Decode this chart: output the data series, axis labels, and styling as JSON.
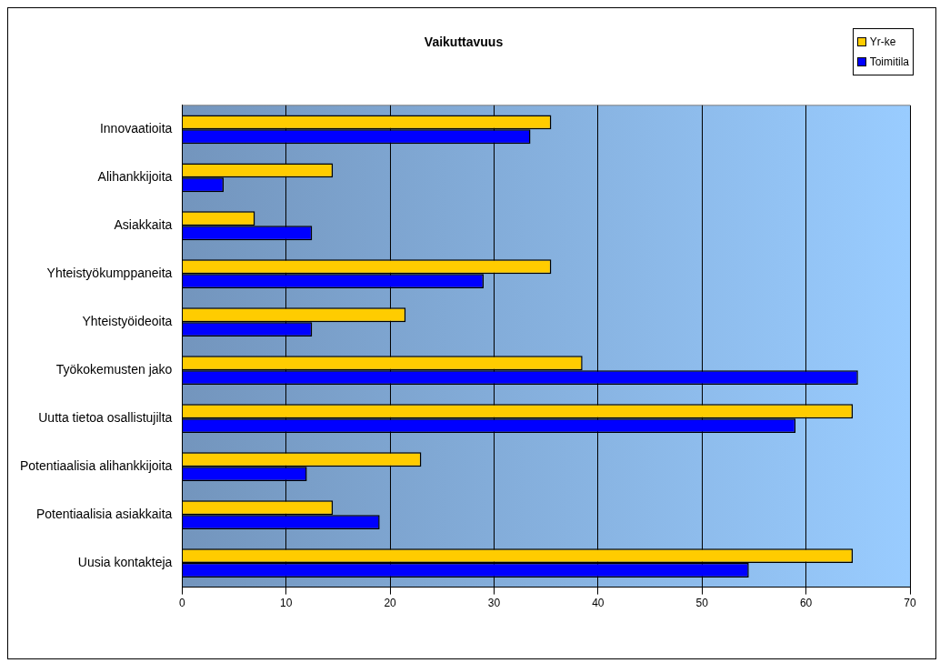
{
  "chart_data": {
    "type": "bar",
    "orientation": "horizontal",
    "title": "Vaikuttavuus",
    "categories": [
      "Innovaatioita",
      "Alihankkijoita",
      "Asiakkaita",
      "Yhteistyökumppaneita",
      "Yhteistyöideoita",
      "Työkokemusten jako",
      "Uutta tietoa osallistujilta",
      "Potentiaalisia alihankkijoita",
      "Potentiaalisia asiakkaita",
      "Uusia kontakteja"
    ],
    "series": [
      {
        "name": "Yr-ke",
        "color": "#ffcc00",
        "values": [
          35.5,
          14.5,
          7,
          35.5,
          21.5,
          38.5,
          64.5,
          23,
          14.5,
          64.5
        ]
      },
      {
        "name": "Toimitila",
        "color": "#0000ff",
        "values": [
          33.5,
          4,
          12.5,
          29,
          12.5,
          65,
          59,
          12,
          19,
          54.5
        ]
      }
    ],
    "xlim": [
      0,
      70
    ],
    "xticks": [
      0,
      10,
      20,
      30,
      40,
      50,
      60,
      70
    ],
    "grid": "x",
    "legend": "top right"
  }
}
